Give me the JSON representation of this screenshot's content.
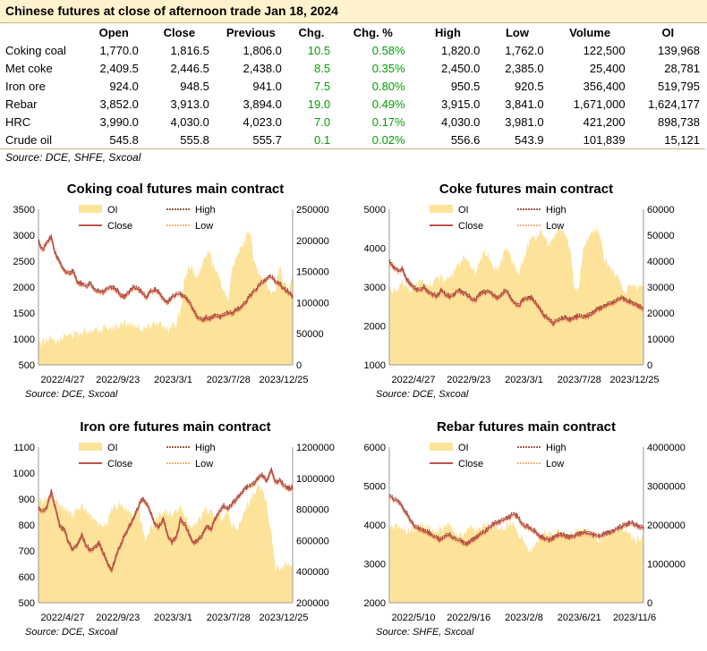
{
  "header": {
    "title": "Chinese futures at close of afternoon trade Jan 18, 2024"
  },
  "table": {
    "columns": [
      "",
      "Open",
      "Close",
      "Previous",
      "Chg.",
      "Chg. %",
      "High",
      "Low",
      "Volume",
      "OI"
    ],
    "rows": [
      [
        "Coking coal",
        "1,770.0",
        "1,816.5",
        "1,806.0",
        "10.5",
        "0.58%",
        "1,820.0",
        "1,762.0",
        "122,500",
        "139,968"
      ],
      [
        "Met coke",
        "2,409.5",
        "2,446.5",
        "2,438.0",
        "8.5",
        "0.35%",
        "2,450.0",
        "2,385.0",
        "25,400",
        "28,781"
      ],
      [
        "Iron ore",
        "924.0",
        "948.5",
        "941.0",
        "7.5",
        "0.80%",
        "950.5",
        "920.5",
        "356,400",
        "519,795"
      ],
      [
        "Rebar",
        "3,852.0",
        "3,913.0",
        "3,894.0",
        "19.0",
        "0.49%",
        "3,915.0",
        "3,841.0",
        "1,671,000",
        "1,624,177"
      ],
      [
        "HRC",
        "3,990.0",
        "4,030.0",
        "4,023.0",
        "7.0",
        "0.17%",
        "4,030.0",
        "3,981.0",
        "421,200",
        "898,738"
      ],
      [
        "Crude oil",
        "545.8",
        "555.8",
        "555.7",
        "0.1",
        "0.02%",
        "556.6",
        "543.9",
        "101,839",
        "15,121"
      ]
    ],
    "source": "Source: DCE, SHFE, Sxcoal"
  },
  "colors": {
    "oi": "#fde29a",
    "close": "#c0504d",
    "high": "#7b2c10",
    "low": "#f0a050",
    "positive": "#00a000",
    "title_bg": "#fff2cc"
  },
  "chart_data": [
    {
      "type": "line",
      "title": "Coking coal futures main contract",
      "source": "Source: DCE, Sxcoal",
      "x_ticks": [
        "2022/4/27",
        "2022/9/23",
        "2023/3/1",
        "2023/7/28",
        "2023/12/25"
      ],
      "y_left": {
        "min": 500,
        "max": 3500,
        "ticks": [
          "3500",
          "3000",
          "2500",
          "2000",
          "1500",
          "1000",
          "500"
        ]
      },
      "y_right": {
        "min": 0,
        "max": 250000,
        "ticks": [
          "250000",
          "200000",
          "150000",
          "100000",
          "50000",
          "0"
        ]
      },
      "legend": [
        "OI",
        "High",
        "Close",
        "Low"
      ],
      "close": [
        2870,
        2700,
        2880,
        2950,
        2600,
        2470,
        2300,
        2250,
        2300,
        2100,
        2050,
        2000,
        2080,
        1950,
        1920,
        1900,
        1950,
        1980,
        1950,
        1850,
        1800,
        1900,
        1980,
        1950,
        1900,
        1800,
        1900,
        1950,
        1900,
        1750,
        1700,
        1800,
        1850,
        1850,
        1820,
        1700,
        1550,
        1400,
        1350,
        1400,
        1380,
        1450,
        1400,
        1450,
        1500,
        1480,
        1550,
        1600,
        1700,
        1800,
        1900,
        2000,
        2100,
        2150,
        2200,
        2100,
        2050,
        1950,
        1900,
        1800
      ],
      "oi": [
        35000,
        38000,
        40000,
        42000,
        40000,
        43000,
        45000,
        47000,
        48000,
        50000,
        52000,
        55000,
        56000,
        57000,
        58000,
        60000,
        62000,
        60000,
        61000,
        63000,
        65000,
        66000,
        65000,
        63000,
        60000,
        58000,
        62000,
        65000,
        66000,
        60000,
        55000,
        60000,
        65000,
        90000,
        140000,
        160000,
        150000,
        140000,
        165000,
        180000,
        175000,
        150000,
        140000,
        120000,
        100000,
        150000,
        170000,
        190000,
        200000,
        215000,
        170000,
        150000,
        140000,
        130000,
        110000,
        120000,
        160000,
        130000,
        120000,
        140000
      ]
    },
    {
      "type": "line",
      "title": "Coke futures main contract",
      "source": "Source: DCE, Sxcoal",
      "x_ticks": [
        "2022/4/27",
        "2022/9/23",
        "2023/3/1",
        "2023/7/28",
        "2023/12/25"
      ],
      "y_left": {
        "min": 1000,
        "max": 5000,
        "ticks": [
          "5000",
          "4000",
          "3000",
          "2000",
          "1000"
        ]
      },
      "y_right": {
        "min": 0,
        "max": 60000,
        "ticks": [
          "60000",
          "50000",
          "40000",
          "30000",
          "20000",
          "10000",
          "0"
        ]
      },
      "legend": [
        "OI",
        "High",
        "Close",
        "Low"
      ],
      "close": [
        3650,
        3500,
        3400,
        3450,
        3200,
        3050,
        2950,
        2900,
        3000,
        2850,
        2800,
        2750,
        2900,
        2800,
        2750,
        2800,
        2900,
        2850,
        2800,
        2700,
        2650,
        2800,
        2850,
        2900,
        2800,
        2700,
        2800,
        2900,
        2750,
        2600,
        2500,
        2650,
        2700,
        2700,
        2600,
        2400,
        2250,
        2150,
        2050,
        2150,
        2200,
        2200,
        2150,
        2200,
        2250,
        2200,
        2250,
        2300,
        2400,
        2450,
        2500,
        2550,
        2600,
        2650,
        2700,
        2650,
        2600,
        2550,
        2500,
        2450
      ],
      "oi": [
        30000,
        28000,
        30000,
        32000,
        30000,
        29000,
        30000,
        32000,
        31000,
        30000,
        32000,
        34000,
        33000,
        32000,
        34000,
        36000,
        38000,
        40000,
        42000,
        38000,
        35000,
        40000,
        44000,
        42000,
        38000,
        36000,
        40000,
        44000,
        42000,
        38000,
        35000,
        40000,
        45000,
        50000,
        48000,
        52000,
        50000,
        46000,
        48000,
        52000,
        53000,
        50000,
        44000,
        30000,
        28000,
        45000,
        48000,
        50000,
        52000,
        50000,
        40000,
        38000,
        36000,
        34000,
        30000,
        28000,
        32000,
        30000,
        29000,
        32000
      ]
    },
    {
      "type": "line",
      "title": "Iron ore futures main contract",
      "source": "Source: DCE, Sxcoal",
      "x_ticks": [
        "2022/4/27",
        "2022/9/23",
        "2023/3/1",
        "2023/7/28",
        "2023/12/25"
      ],
      "y_left": {
        "min": 500,
        "max": 1100,
        "ticks": [
          "1100",
          "1000",
          "900",
          "800",
          "700",
          "600",
          "500"
        ]
      },
      "y_right": {
        "min": 200000,
        "max": 1200000,
        "ticks": [
          "1200000",
          "1000000",
          "800000",
          "600000",
          "400000",
          "200000"
        ]
      },
      "legend": [
        "OI",
        "High",
        "Close",
        "Low"
      ],
      "close": [
        860,
        850,
        870,
        930,
        860,
        790,
        780,
        730,
        700,
        720,
        760,
        720,
        700,
        710,
        730,
        690,
        650,
        620,
        680,
        720,
        760,
        790,
        820,
        860,
        900,
        880,
        850,
        800,
        790,
        820,
        760,
        730,
        750,
        820,
        800,
        760,
        730,
        740,
        760,
        790,
        780,
        820,
        850,
        870,
        860,
        880,
        900,
        920,
        940,
        950,
        960,
        980,
        990,
        970,
        1010,
        960,
        970,
        950,
        940,
        940
      ],
      "oi": [
        870000,
        850000,
        880000,
        900000,
        860000,
        820000,
        800000,
        780000,
        760000,
        800000,
        820000,
        780000,
        760000,
        740000,
        700000,
        680000,
        720000,
        800000,
        820000,
        840000,
        800000,
        780000,
        760000,
        800000,
        700000,
        600000,
        680000,
        720000,
        760000,
        800000,
        780000,
        760000,
        780000,
        820000,
        760000,
        700000,
        680000,
        720000,
        760000,
        800000,
        780000,
        760000,
        740000,
        760000,
        780000,
        700000,
        660000,
        720000,
        800000,
        860000,
        900000,
        940000,
        920000,
        840000,
        640000,
        420000,
        440000,
        440000,
        460000,
        440000
      ]
    },
    {
      "type": "line",
      "title": "Rebar futures main contract",
      "source": "Source: SHFE, Sxcoal",
      "x_ticks": [
        "2022/5/10",
        "2022/9/16",
        "2023/2/8",
        "2023/6/21",
        "2023/11/6"
      ],
      "y_left": {
        "min": 2000,
        "max": 6000,
        "ticks": [
          "6000",
          "5000",
          "4000",
          "3000",
          "2000"
        ]
      },
      "y_right": {
        "min": 0,
        "max": 4000000,
        "ticks": [
          "4000000",
          "3000000",
          "2000000",
          "1000000",
          "0"
        ]
      },
      "legend": [
        "OI",
        "High",
        "Close",
        "Low"
      ],
      "close": [
        4750,
        4650,
        4600,
        4450,
        4300,
        4100,
        3950,
        3900,
        3850,
        3800,
        3700,
        3650,
        3600,
        3700,
        3750,
        3650,
        3600,
        3550,
        3500,
        3600,
        3650,
        3750,
        3800,
        3900,
        4000,
        4050,
        4100,
        4150,
        4200,
        4300,
        4150,
        4000,
        3950,
        3900,
        3800,
        3700,
        3650,
        3600,
        3650,
        3700,
        3750,
        3700,
        3680,
        3700,
        3750,
        3800,
        3780,
        3750,
        3700,
        3720,
        3750,
        3800,
        3850,
        3900,
        3950,
        4000,
        4050,
        4000,
        3950,
        3900
      ],
      "oi": [
        2000000,
        1950000,
        2000000,
        1900000,
        1800000,
        1900000,
        1850000,
        1950000,
        2000000,
        1950000,
        1900000,
        1850000,
        1900000,
        1950000,
        2000000,
        1800000,
        1700000,
        1750000,
        1800000,
        1900000,
        1850000,
        1950000,
        2050000,
        2000000,
        1950000,
        1950000,
        1900000,
        1950000,
        2000000,
        2000000,
        1800000,
        1600000,
        1400000,
        1300000,
        1500000,
        1700000,
        1850000,
        1800000,
        1750000,
        1800000,
        1850000,
        1800000,
        1750000,
        1800000,
        1850000,
        1900000,
        1850000,
        1800000,
        1700000,
        1600000,
        1700000,
        1800000,
        1850000,
        1900000,
        1950000,
        1800000,
        1700000,
        1600000,
        1650000,
        1650000
      ]
    }
  ]
}
